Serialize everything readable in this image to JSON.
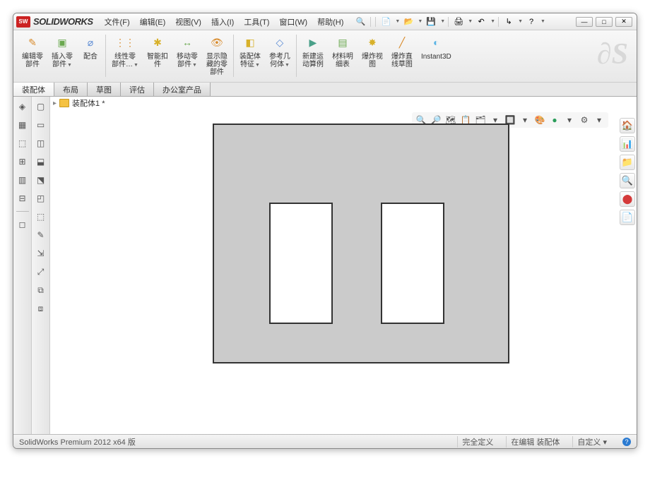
{
  "app": {
    "name": "SOLIDWORKS",
    "logo_text": "SW"
  },
  "menus": [
    "文件(F)",
    "编辑(E)",
    "视图(V)",
    "插入(I)",
    "工具(T)",
    "窗口(W)",
    "帮助(H)"
  ],
  "title_tools": [
    {
      "glyph": "🔍",
      "name": "search-icon"
    },
    {
      "glyph": "📄",
      "name": "new-icon",
      "dd": true
    },
    {
      "glyph": "📂",
      "name": "open-icon",
      "dd": true
    },
    {
      "glyph": "💾",
      "name": "save-icon",
      "dd": true
    },
    {
      "glyph": "🖨",
      "name": "print-icon",
      "dd": true
    },
    {
      "glyph": "↶",
      "name": "undo-icon",
      "dd": true
    },
    {
      "glyph": "↳",
      "name": "select-icon",
      "dd": true
    },
    {
      "glyph": "?",
      "name": "help-icon",
      "dd": true
    }
  ],
  "win_controls": {
    "min": "—",
    "max": "□",
    "close": "✕"
  },
  "ribbon": [
    {
      "label": "编辑零\n部件",
      "color": "#d88a2a",
      "glyph": "✎"
    },
    {
      "label": "插入零\n部件",
      "color": "#6aa84f",
      "glyph": "▣",
      "dd": true
    },
    {
      "label": "配合",
      "color": "#5b8bd4",
      "glyph": "⌀"
    },
    {
      "label": "线性零\n部件…",
      "color": "#d88a2a",
      "glyph": "⋮⋮",
      "dd": true
    },
    {
      "label": "智能扣\n件",
      "color": "#d8b12a",
      "glyph": "✱"
    },
    {
      "label": "移动零\n部件",
      "color": "#6aa84f",
      "glyph": "↔",
      "dd": true
    },
    {
      "label": "显示隐\n藏的零\n部件",
      "color": "#d88a2a",
      "glyph": "👁"
    },
    {
      "label": "装配体\n特征",
      "color": "#d8b12a",
      "glyph": "◧",
      "dd": true
    },
    {
      "label": "参考几\n何体",
      "color": "#5b8bd4",
      "glyph": "◇",
      "dd": true
    },
    {
      "label": "新建运\n动算例",
      "color": "#4aa089",
      "glyph": "▶"
    },
    {
      "label": "材料明\n细表",
      "color": "#6aa84f",
      "glyph": "▤"
    },
    {
      "label": "爆炸视\n图",
      "color": "#d8b12a",
      "glyph": "✸"
    },
    {
      "label": "爆炸直\n线草图",
      "color": "#d88a2a",
      "glyph": "╱"
    },
    {
      "label": "Instant3D",
      "color": "#5bb4e4",
      "glyph": "◐"
    }
  ],
  "doc_tabs": [
    "装配体",
    "布局",
    "草图",
    "评估",
    "办公室产品"
  ],
  "tree": {
    "root_label": "装配体1 *"
  },
  "left_toolbar_a": [
    "◈",
    "▦",
    "⬚",
    "⊞",
    "▥",
    "⊟",
    "—",
    "◻"
  ],
  "left_toolbar_b": [
    "▢",
    "▭",
    "◫",
    "⬓",
    "⬔",
    "◰",
    "⬚",
    "✎",
    "⇲",
    "⤢",
    "⧉",
    "⧈"
  ],
  "hud_tools": [
    {
      "g": "🔍",
      "n": "zoom-fit-icon"
    },
    {
      "g": "🔎",
      "n": "zoom-area-icon"
    },
    {
      "g": "🗺",
      "n": "pan-icon"
    },
    {
      "g": "📋",
      "n": "section-icon"
    },
    {
      "g": "🗂",
      "n": "display-style-icon"
    },
    {
      "g": "▾",
      "n": "dd1-icon"
    },
    {
      "g": "🔲",
      "n": "hide-show-icon"
    },
    {
      "g": "▾",
      "n": "dd2-icon"
    },
    {
      "g": "🎨",
      "n": "appearance-icon"
    },
    {
      "g": "●",
      "n": "scene-icon",
      "c": "#2a9d5a"
    },
    {
      "g": "▾",
      "n": "dd3-icon"
    },
    {
      "g": "⚙",
      "n": "settings-icon"
    },
    {
      "g": "▾",
      "n": "dd4-icon"
    }
  ],
  "right_sidebar": [
    {
      "g": "🏠",
      "c": "#e8a94a"
    },
    {
      "g": "📊",
      "c": "#6aa84f"
    },
    {
      "g": "📁",
      "c": "#e8a94a"
    },
    {
      "g": "🔍",
      "c": "#888"
    },
    {
      "g": "⬤",
      "c": "#d43a3a"
    },
    {
      "g": "📄",
      "c": "#888"
    }
  ],
  "part_style": {
    "plate_fill": "#cbcbcb",
    "plate_border": "#333333",
    "hole_fill": "#ffffff"
  },
  "status": {
    "left": "SolidWorks Premium 2012 x64 版",
    "seg1": "完全定义",
    "seg2": "在编辑 装配体",
    "seg3": "自定义 ▾"
  }
}
